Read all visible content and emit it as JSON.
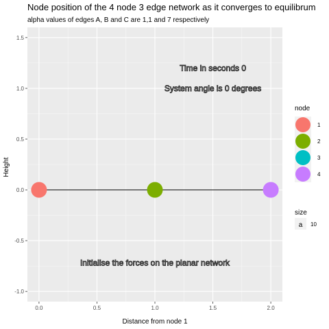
{
  "chart_data": {
    "type": "scatter",
    "title": "Node position of the 4 node 3 edge network as it converges to equilibrum",
    "subtitle": "alpha values of edges A, B and C are 1,1 and 7 respectively",
    "xlabel": "Distance from node 1",
    "ylabel": "Height",
    "xlim": [
      -0.1,
      2.1
    ],
    "ylim": [
      -1.1,
      1.6
    ],
    "x_ticks": [
      0.0,
      0.5,
      1.0,
      1.5,
      2.0
    ],
    "x_tick_labels": [
      "0.0",
      "0.5",
      "1.0",
      "1.5",
      "2.0"
    ],
    "y_ticks": [
      -1.0,
      -0.5,
      0.0,
      0.5,
      1.0,
      1.5
    ],
    "y_tick_labels": [
      "-1.0",
      "-0.5",
      "0.0",
      "0.5",
      "1.0",
      "1.5"
    ],
    "grid": true,
    "background": "#ebebeb",
    "edges": [
      {
        "x": [
          0.0,
          1.0
        ],
        "y": [
          0.0,
          0.0
        ]
      },
      {
        "x": [
          1.0,
          2.0
        ],
        "y": [
          0.0,
          0.0
        ]
      }
    ],
    "points": [
      {
        "node": "1",
        "x": 0.0,
        "y": 0.0,
        "color": "#F8766D"
      },
      {
        "node": "2",
        "x": 1.0,
        "y": 0.0,
        "color": "#7CAE00"
      },
      {
        "node": "4",
        "x": 2.0,
        "y": 0.0,
        "color": "#C77CFF"
      }
    ],
    "annotations": [
      {
        "text": "Time in seconds 0",
        "x": 1.5,
        "y": 1.2
      },
      {
        "text": "System angle is 0 degrees",
        "x": 1.5,
        "y": 1.0
      },
      {
        "text": "Initialise the forces on the planar network",
        "x": 1.0,
        "y": -0.72
      }
    ],
    "legend": {
      "position": "right",
      "node_title": "node",
      "node_items": [
        {
          "label": "1",
          "color": "#F8766D"
        },
        {
          "label": "2",
          "color": "#7CAE00"
        },
        {
          "label": "3",
          "color": "#00BFC4"
        },
        {
          "label": "4",
          "color": "#C77CFF"
        }
      ],
      "size_title": "size",
      "size_key": "a",
      "size_value": "10"
    }
  }
}
